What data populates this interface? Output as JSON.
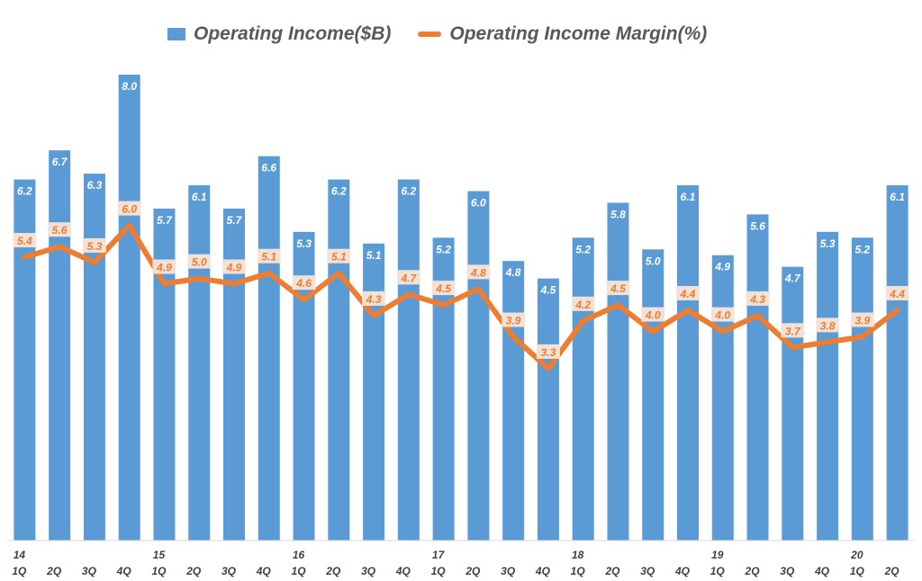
{
  "legend": {
    "bar_label": "Operating Income($B)",
    "line_label": "Operating Income Margin(%)"
  },
  "chart_data": {
    "type": "bar",
    "title": "",
    "categories": [
      "1Q",
      "2Q",
      "3Q",
      "4Q",
      "1Q",
      "2Q",
      "3Q",
      "4Q",
      "1Q",
      "2Q",
      "3Q",
      "4Q",
      "1Q",
      "2Q",
      "3Q",
      "4Q",
      "1Q",
      "2Q",
      "3Q",
      "4Q",
      "1Q",
      "2Q",
      "3Q",
      "4Q",
      "1Q",
      "2Q"
    ],
    "year_labels": [
      "14",
      "",
      "",
      "",
      "15",
      "",
      "",
      "",
      "16",
      "",
      "",
      "",
      "17",
      "",
      "",
      "",
      "18",
      "",
      "",
      "",
      "19",
      "",
      "",
      "",
      "20",
      ""
    ],
    "series": [
      {
        "name": "Operating Income($B)",
        "type": "bar",
        "color": "#5b9bd5",
        "values": [
          6.2,
          6.7,
          6.3,
          8.0,
          5.7,
          6.1,
          5.7,
          6.6,
          5.3,
          6.2,
          5.1,
          6.2,
          5.2,
          6.0,
          4.8,
          4.5,
          5.2,
          5.8,
          5.0,
          6.1,
          4.9,
          5.6,
          4.7,
          5.3,
          5.2,
          6.1
        ],
        "value_labels": [
          "6.2",
          "6.7",
          "6.3",
          "8.0",
          "5.7",
          "6.1",
          "5.7",
          "6.6",
          "5.3",
          "6.2",
          "5.1",
          "6.2",
          "5.2",
          "6.0",
          "4.8",
          "4.5",
          "5.2",
          "5.8",
          "5.0",
          "6.1",
          "4.9",
          "5.6",
          "4.7",
          "5.3",
          "5.2",
          "6.1"
        ]
      },
      {
        "name": "Operating Income Margin(%)",
        "type": "line",
        "color": "#ed7d31",
        "values": [
          5.4,
          5.6,
          5.3,
          6.0,
          4.9,
          5.0,
          4.9,
          5.1,
          4.6,
          5.1,
          4.3,
          4.7,
          4.5,
          4.8,
          3.9,
          3.3,
          4.2,
          4.5,
          4.0,
          4.4,
          4.0,
          4.3,
          3.7,
          3.8,
          3.9,
          4.4
        ],
        "value_labels": [
          "5.4",
          "5.6",
          "5.3",
          "6.0",
          "4.9",
          "5.0",
          "4.9",
          "5.1",
          "4.6",
          "5.1",
          "4.3",
          "4.7",
          "4.5",
          "4.8",
          "3.9",
          "3.3",
          "4.2",
          "4.5",
          "4.0",
          "4.4",
          "4.0",
          "4.3",
          "3.7",
          "3.8",
          "3.9",
          "4.4"
        ]
      }
    ],
    "bar_axis_range": [
      0,
      8.0
    ],
    "line_axis_range": [
      0,
      6.0
    ],
    "legend_position": "top",
    "grid": false
  }
}
